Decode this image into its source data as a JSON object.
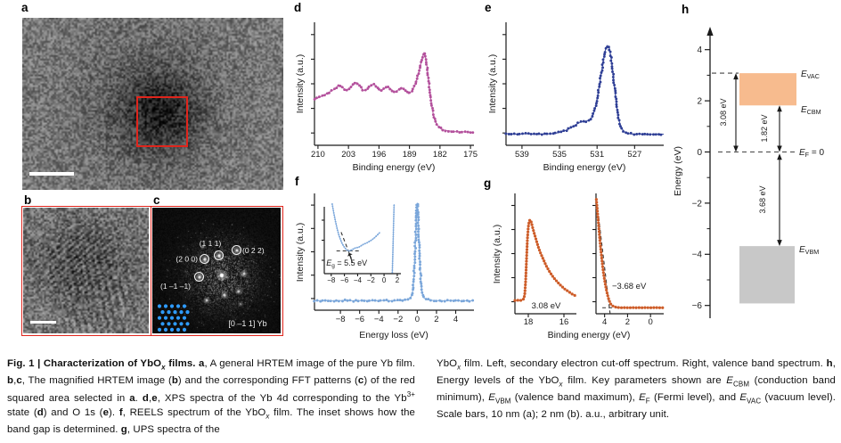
{
  "panels": {
    "a": {
      "label": "a"
    },
    "b": {
      "label": "b"
    },
    "c": {
      "label": "c",
      "reflections": [
        "(1 1 1)",
        "(0 2 2)",
        "(2 0 0)",
        "(1 –1 –1)"
      ],
      "zone_axis": "[0 –1 1] Yb",
      "lattice_color": "#2e9bff"
    },
    "d": {
      "label": "d"
    },
    "e": {
      "label": "e"
    },
    "f": {
      "label": "f"
    },
    "g": {
      "label": "g"
    },
    "h": {
      "label": "h"
    }
  },
  "colors": {
    "red_marker": "#e0251c",
    "scalebar": "#ffffff",
    "axis": "#1a1a1a"
  },
  "caption": {
    "left_html": "<b>Fig. 1 | Characterization of YbO<i><sub>x</sub></i> films. a</b>, A general HRTEM image of the pure Yb film. <b>b</b>,<b>c</b>, The magnified HRTEM image (<b>b</b>) and the corresponding FFT patterns (<b>c</b>) of the red squared area selected in <b>a</b>. <b>d</b>,<b>e</b>, XPS spectra of the Yb 4d corresponding to the Yb<sup>3+</sup> state (<b>d</b>) and O 1s (<b>e</b>). <b>f</b>, REELS spectrum of the YbO<i><sub>x</sub></i> film. The inset shows how the band gap is determined. <b>g</b>, UPS spectra of the",
    "right_html": "YbO<i><sub>x</sub></i> film. Left, secondary electron cut-off spectrum. Right, valence band spectrum. <b>h</b>, Energy levels of the YbO<i><sub>x</sub></i> film. Key parameters shown are <i>E</i><sub>CBM</sub> (conduction band minimum), <i>E</i><sub>VBM</sub> (valence band maximum), <i>E</i><sub>F</sub> (Fermi level), and <i>E</i><sub>VAC</sub> (vacuum level). Scale bars, 10 nm (a); 2 nm (b). a.u., arbitrary unit."
  },
  "chart_data": [
    {
      "id": "d",
      "type": "line",
      "xlabel": "Binding energy (eV)",
      "ylabel": "Intensity (a.u.)",
      "x_ticks": [
        210,
        203,
        196,
        189,
        182,
        175
      ],
      "x_tick_labels": [
        "210",
        "203",
        "196",
        "189",
        "182",
        "175"
      ],
      "x_range": [
        210.8,
        174.2
      ],
      "x_axis_reversed": true,
      "color": "#b3509c",
      "line_color": "#c272ae",
      "points": [
        [
          210.8,
          0.37
        ],
        [
          210,
          0.385
        ],
        [
          209,
          0.4
        ],
        [
          208,
          0.42
        ],
        [
          207,
          0.44
        ],
        [
          206,
          0.46
        ],
        [
          205.2,
          0.49
        ],
        [
          204.4,
          0.475
        ],
        [
          203.6,
          0.445
        ],
        [
          202.8,
          0.46
        ],
        [
          202,
          0.49
        ],
        [
          201.2,
          0.51
        ],
        [
          200.4,
          0.485
        ],
        [
          199.6,
          0.445
        ],
        [
          198.8,
          0.45
        ],
        [
          198,
          0.48
        ],
        [
          197.2,
          0.5
        ],
        [
          196.4,
          0.47
        ],
        [
          195.6,
          0.44
        ],
        [
          194.8,
          0.46
        ],
        [
          194,
          0.48
        ],
        [
          193.2,
          0.455
        ],
        [
          192.4,
          0.43
        ],
        [
          191.6,
          0.45
        ],
        [
          190.8,
          0.47
        ],
        [
          190,
          0.445
        ],
        [
          189.2,
          0.42
        ],
        [
          188.4,
          0.44
        ],
        [
          187.6,
          0.5
        ],
        [
          187,
          0.57
        ],
        [
          186.4,
          0.66
        ],
        [
          186,
          0.72
        ],
        [
          185.7,
          0.75
        ],
        [
          185.4,
          0.73
        ],
        [
          185,
          0.65
        ],
        [
          184.6,
          0.52
        ],
        [
          184.2,
          0.4
        ],
        [
          183.8,
          0.3
        ],
        [
          183.4,
          0.23
        ],
        [
          183,
          0.19
        ],
        [
          182.4,
          0.155
        ],
        [
          181.6,
          0.13
        ],
        [
          180.6,
          0.12
        ],
        [
          179.4,
          0.115
        ],
        [
          178.2,
          0.11
        ],
        [
          177,
          0.11
        ],
        [
          175.8,
          0.108
        ],
        [
          174.2,
          0.105
        ]
      ]
    },
    {
      "id": "e",
      "type": "line",
      "xlabel": "Binding energy (eV)",
      "ylabel": "Intensity (a.u.)",
      "x_ticks": [
        539,
        535,
        531,
        527
      ],
      "x_tick_labels": [
        "539",
        "535",
        "531",
        "527"
      ],
      "x_range": [
        540.7,
        523.9
      ],
      "x_axis_reversed": true,
      "color": "#2e3e95",
      "line_color": "#4b5aa8",
      "points": [
        [
          540.7,
          0.095
        ],
        [
          539.5,
          0.09
        ],
        [
          538.5,
          0.095
        ],
        [
          537.5,
          0.09
        ],
        [
          536.5,
          0.092
        ],
        [
          535.5,
          0.096
        ],
        [
          534.8,
          0.11
        ],
        [
          534.2,
          0.125
        ],
        [
          533.6,
          0.15
        ],
        [
          533.1,
          0.175
        ],
        [
          532.7,
          0.19
        ],
        [
          532.3,
          0.195
        ],
        [
          531.9,
          0.2
        ],
        [
          531.5,
          0.23
        ],
        [
          531.2,
          0.3
        ],
        [
          530.9,
          0.42
        ],
        [
          530.6,
          0.56
        ],
        [
          530.3,
          0.7
        ],
        [
          530.1,
          0.78
        ],
        [
          529.9,
          0.81
        ],
        [
          529.7,
          0.79
        ],
        [
          529.5,
          0.71
        ],
        [
          529.3,
          0.58
        ],
        [
          529.1,
          0.44
        ],
        [
          528.9,
          0.31
        ],
        [
          528.7,
          0.21
        ],
        [
          528.4,
          0.14
        ],
        [
          528.1,
          0.11
        ],
        [
          527.6,
          0.095
        ],
        [
          527,
          0.09
        ],
        [
          526.3,
          0.092
        ],
        [
          525.6,
          0.088
        ],
        [
          524.9,
          0.092
        ],
        [
          523.9,
          0.09
        ]
      ]
    },
    {
      "id": "f_main",
      "type": "line",
      "xlabel": "Energy loss (eV)",
      "ylabel": "Intensity (a.u.)",
      "x_ticks": [
        -8,
        -6,
        -4,
        -2,
        0,
        2,
        4
      ],
      "x_tick_labels": [
        "−8",
        "−6",
        "−4",
        "−2",
        "0",
        "2",
        "4"
      ],
      "x_range": [
        -10.7,
        5.9
      ],
      "x_axis_reversed": false,
      "color": "#7aa6da",
      "line_color": "#92b7e2",
      "points": [
        [
          -10.7,
          0.08
        ],
        [
          -9.5,
          0.083
        ],
        [
          -8.5,
          0.08
        ],
        [
          -7.5,
          0.083
        ],
        [
          -6.5,
          0.08
        ],
        [
          -5.5,
          0.083
        ],
        [
          -4.5,
          0.08
        ],
        [
          -3.5,
          0.083
        ],
        [
          -2.5,
          0.08
        ],
        [
          -1.6,
          0.085
        ],
        [
          -1,
          0.09
        ],
        [
          -0.7,
          0.105
        ],
        [
          -0.5,
          0.15
        ],
        [
          -0.38,
          0.25
        ],
        [
          -0.28,
          0.4
        ],
        [
          -0.19,
          0.58
        ],
        [
          -0.11,
          0.75
        ],
        [
          -0.05,
          0.87
        ],
        [
          0,
          0.92
        ],
        [
          0.05,
          0.87
        ],
        [
          0.11,
          0.75
        ],
        [
          0.19,
          0.58
        ],
        [
          0.28,
          0.4
        ],
        [
          0.38,
          0.25
        ],
        [
          0.5,
          0.15
        ],
        [
          0.7,
          0.105
        ],
        [
          1,
          0.09
        ],
        [
          1.6,
          0.085
        ],
        [
          2.5,
          0.08
        ],
        [
          3.5,
          0.083
        ],
        [
          4.5,
          0.08
        ],
        [
          5.9,
          0.08
        ]
      ]
    },
    {
      "id": "f_inset",
      "type": "line",
      "x_ticks": [
        -8,
        -6,
        -4,
        -2,
        0,
        2
      ],
      "x_tick_labels": [
        "−8",
        "−6",
        "−4",
        "−2",
        "0",
        "2"
      ],
      "x_range": [
        -9.05,
        2.55
      ],
      "x_axis_reversed": false,
      "color": "#7aa6da",
      "line_color": "#92b7e2",
      "band_gap_eV": 5.5,
      "band_gap_label": {
        "main": "E",
        "sub": "g",
        "suffix": " = 5.5 eV"
      },
      "points": [
        [
          -7.85,
          1.04
        ],
        [
          -7.6,
          0.9
        ],
        [
          -7.35,
          0.78
        ],
        [
          -7.1,
          0.67
        ],
        [
          -6.85,
          0.58
        ],
        [
          -6.6,
          0.51
        ],
        [
          -6.35,
          0.45
        ],
        [
          -6.1,
          0.41
        ],
        [
          -5.85,
          0.375
        ],
        [
          -5.6,
          0.35
        ],
        [
          -5.35,
          0.34
        ],
        [
          -5.1,
          0.345
        ],
        [
          -4.85,
          0.36
        ],
        [
          -4.6,
          0.37
        ],
        [
          -4.35,
          0.385
        ],
        [
          -4.1,
          0.39
        ],
        [
          -3.85,
          0.395
        ],
        [
          -3.6,
          0.41
        ],
        [
          -3.35,
          0.425
        ],
        [
          -3.1,
          0.44
        ],
        [
          -2.85,
          0.45
        ],
        [
          -2.6,
          0.46
        ],
        [
          -2.35,
          0.475
        ],
        [
          -2.1,
          0.49
        ],
        [
          -1.85,
          0.505
        ],
        [
          -1.6,
          0.525
        ],
        [
          -1.35,
          0.545
        ],
        [
          -1.1,
          0.57
        ],
        [
          -0.85,
          0.595
        ],
        [
          -0.6,
          0.62
        ]
      ],
      "edge_points": [
        [
          1.25,
          0.02
        ],
        [
          1.33,
          0.3
        ],
        [
          1.41,
          0.62
        ],
        [
          1.48,
          0.9
        ],
        [
          1.52,
          1.04
        ]
      ],
      "dashes": [
        {
          "x1": -7.2,
          "y1": 0.34,
          "x2": -3.5,
          "y2": 0.34
        },
        {
          "x1": -6.5,
          "y1": 0.62,
          "x2": -4.85,
          "y2": 0.2
        }
      ]
    },
    {
      "id": "g_left",
      "type": "line",
      "xlabel": "Binding energy (eV)",
      "ylabel": "Intensity (a.u.)",
      "x_ticks": [
        18,
        16
      ],
      "x_tick_labels": [
        "18",
        "16"
      ],
      "x_range": [
        18.75,
        15.3
      ],
      "x_axis_reversed": true,
      "color": "#cd5c28",
      "line_color": "#f2b096",
      "cutoff_label": "3.08 eV",
      "points": [
        [
          18.75,
          0.11
        ],
        [
          18.6,
          0.112
        ],
        [
          18.45,
          0.11
        ],
        [
          18.32,
          0.115
        ],
        [
          18.25,
          0.125
        ],
        [
          18.2,
          0.16
        ],
        [
          18.15,
          0.27
        ],
        [
          18.1,
          0.45
        ],
        [
          18.05,
          0.62
        ],
        [
          18,
          0.72
        ],
        [
          17.95,
          0.77
        ],
        [
          17.9,
          0.78
        ],
        [
          17.84,
          0.765
        ],
        [
          17.78,
          0.73
        ],
        [
          17.68,
          0.675
        ],
        [
          17.56,
          0.615
        ],
        [
          17.44,
          0.555
        ],
        [
          17.3,
          0.5
        ],
        [
          17.15,
          0.45
        ],
        [
          17,
          0.4
        ],
        [
          16.85,
          0.36
        ],
        [
          16.7,
          0.325
        ],
        [
          16.55,
          0.295
        ],
        [
          16.4,
          0.27
        ],
        [
          16.25,
          0.245
        ],
        [
          16.1,
          0.225
        ],
        [
          15.95,
          0.205
        ],
        [
          15.8,
          0.19
        ],
        [
          15.65,
          0.175
        ],
        [
          15.5,
          0.16
        ],
        [
          15.35,
          0.15
        ],
        [
          15.3,
          0.145
        ]
      ]
    },
    {
      "id": "g_right",
      "type": "line",
      "x_ticks": [
        4,
        2,
        0
      ],
      "x_tick_labels": [
        "4",
        "2",
        "0"
      ],
      "x_range": [
        4.75,
        -1.15
      ],
      "x_axis_reversed": true,
      "color": "#cd5c28",
      "line_color": "#f2b096",
      "vbm_label": "−3.68 eV",
      "points": [
        [
          4.72,
          0.95
        ],
        [
          4.66,
          0.89
        ],
        [
          4.58,
          0.8
        ],
        [
          4.5,
          0.71
        ],
        [
          4.42,
          0.62
        ],
        [
          4.34,
          0.54
        ],
        [
          4.26,
          0.47
        ],
        [
          4.18,
          0.4
        ],
        [
          4.1,
          0.34
        ],
        [
          4.02,
          0.29
        ],
        [
          3.94,
          0.245
        ],
        [
          3.86,
          0.205
        ],
        [
          3.78,
          0.17
        ],
        [
          3.7,
          0.14
        ],
        [
          3.62,
          0.115
        ],
        [
          3.54,
          0.095
        ],
        [
          3.46,
          0.08
        ],
        [
          3.36,
          0.07
        ],
        [
          3.24,
          0.062
        ],
        [
          3.1,
          0.057
        ],
        [
          2.9,
          0.053
        ],
        [
          2.7,
          0.051
        ],
        [
          2.45,
          0.05
        ],
        [
          2.2,
          0.051
        ],
        [
          1.9,
          0.05
        ],
        [
          1.6,
          0.051
        ],
        [
          1.3,
          0.05
        ],
        [
          1,
          0.051
        ],
        [
          0.7,
          0.05
        ],
        [
          0.4,
          0.051
        ],
        [
          0,
          0.05
        ],
        [
          -0.4,
          0.051
        ],
        [
          -0.8,
          0.05
        ],
        [
          -1.15,
          0.05
        ]
      ],
      "dashes": [
        {
          "x1": 4.52,
          "y1": 0.8,
          "x2": 3.52,
          "y2": 0.0
        },
        {
          "x1": 4.2,
          "y1": 0.05,
          "x2": 2.35,
          "y2": 0.05
        }
      ]
    },
    {
      "id": "h",
      "type": "energy-diagram",
      "ylabel": "Energy (eV)",
      "y_ticks": [
        4,
        2,
        0,
        -2,
        -4,
        -6
      ],
      "y_tick_labels": [
        "4",
        "2",
        "0",
        "−2",
        "−4",
        "−6"
      ],
      "y_range": [
        -6.5,
        4.7
      ],
      "levels": {
        "e_vac_eV": 3.08,
        "e_cbm_eV": 1.82,
        "e_f_eV": 0,
        "e_vbm_eV": -3.68,
        "vb_box_bottom_eV": -5.92
      },
      "boxes": [
        {
          "name": "conduction-band",
          "from": 1.82,
          "to": 3.08,
          "color": "#f7bb8e"
        },
        {
          "name": "valence-band",
          "from": -5.92,
          "to": -3.68,
          "color": "#c8c8c8"
        }
      ],
      "labels": {
        "e_vac": {
          "main": "E",
          "sub": "VAC",
          "suffix": ""
        },
        "e_cbm": {
          "main": "E",
          "sub": "CBM",
          "suffix": ""
        },
        "e_f": {
          "main": "E",
          "sub": "F",
          "suffix": " = 0"
        },
        "e_vbm": {
          "main": "E",
          "sub": "VBM",
          "suffix": ""
        }
      },
      "arrow_labels": [
        "3.08 eV",
        "1.82 eV",
        "3.68 eV"
      ]
    }
  ]
}
